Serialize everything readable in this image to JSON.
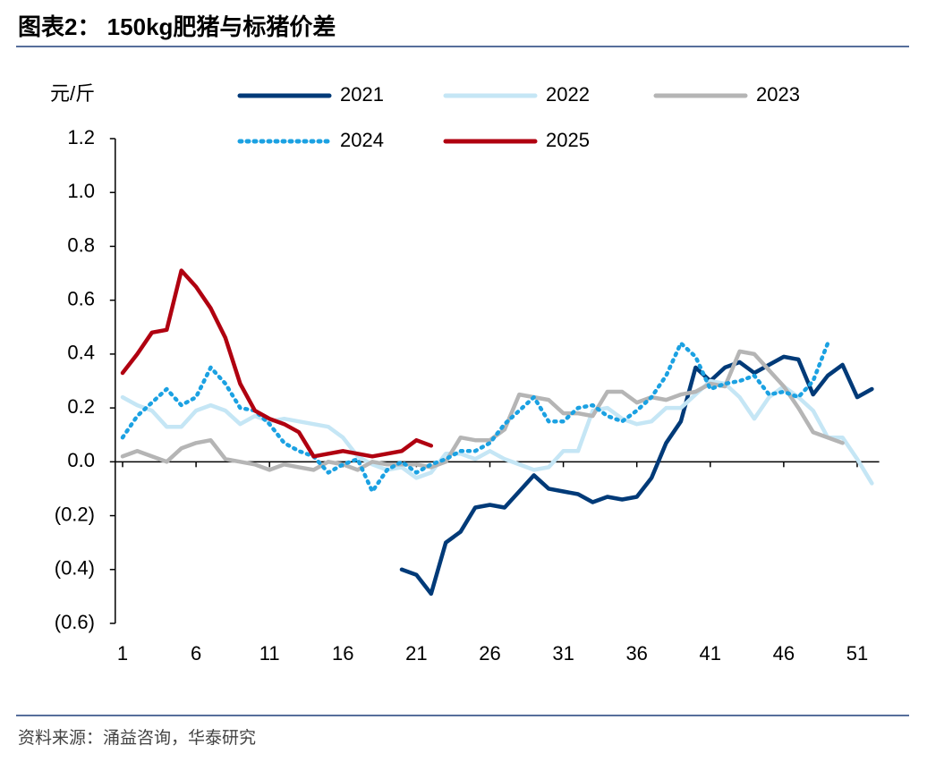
{
  "chart_data": {
    "type": "line",
    "title": "图表2： 150kg肥猪与标猪价差",
    "y_label": "元/斤",
    "source": "资料来源：涌益咨询，华泰研究",
    "x": [
      1,
      2,
      3,
      4,
      5,
      6,
      7,
      8,
      9,
      10,
      11,
      12,
      13,
      14,
      15,
      16,
      17,
      18,
      19,
      20,
      21,
      22,
      23,
      24,
      25,
      26,
      27,
      28,
      29,
      30,
      31,
      32,
      33,
      34,
      35,
      36,
      37,
      38,
      39,
      40,
      41,
      42,
      43,
      44,
      45,
      46,
      47,
      48,
      49,
      50,
      51,
      52
    ],
    "xlim": [
      0.5,
      52.5
    ],
    "xticks": [
      1,
      6,
      11,
      16,
      21,
      26,
      31,
      36,
      41,
      46,
      51
    ],
    "ylim": [
      -0.6,
      1.2
    ],
    "yticks": [
      {
        "value": -0.6,
        "label": "(0.6)"
      },
      {
        "value": -0.4,
        "label": "(0.4)"
      },
      {
        "value": -0.2,
        "label": "(0.2)"
      },
      {
        "value": 0,
        "label": "0.0"
      },
      0.2,
      0.4,
      0.6,
      0.8,
      {
        "value": 1,
        "label": "1.0"
      },
      1.2
    ],
    "series": [
      {
        "name": "2021",
        "color": "#003a78",
        "style": "solid",
        "values": [
          null,
          null,
          null,
          null,
          null,
          null,
          null,
          null,
          null,
          null,
          null,
          null,
          null,
          null,
          null,
          null,
          null,
          null,
          null,
          -0.4,
          -0.42,
          -0.49,
          -0.3,
          -0.26,
          -0.17,
          -0.16,
          -0.17,
          -0.11,
          -0.05,
          -0.1,
          -0.11,
          -0.12,
          -0.15,
          -0.13,
          -0.14,
          -0.13,
          -0.06,
          0.07,
          0.15,
          0.35,
          0.3,
          0.35,
          0.37,
          0.33,
          0.36,
          0.39,
          0.38,
          0.25,
          0.32,
          0.36,
          0.24,
          0.27
        ]
      },
      {
        "name": "2022",
        "color": "#c5e6f5",
        "style": "solid",
        "values": [
          0.24,
          0.21,
          0.19,
          0.13,
          0.13,
          0.19,
          0.21,
          0.19,
          0.14,
          0.17,
          0.15,
          0.16,
          0.15,
          0.14,
          0.13,
          0.09,
          0.02,
          -0.01,
          -0.03,
          -0.02,
          -0.06,
          -0.04,
          0.03,
          0.03,
          0.01,
          0.04,
          0.01,
          -0.01,
          -0.03,
          -0.02,
          0.04,
          0.04,
          0.19,
          0.2,
          0.16,
          0.14,
          0.15,
          0.2,
          0.2,
          0.25,
          0.3,
          0.29,
          0.24,
          0.16,
          0.24,
          0.28,
          0.24,
          0.19,
          0.09,
          0.09,
          0.01,
          -0.08
        ]
      },
      {
        "name": "2023",
        "color": "#b5b5b5",
        "style": "solid",
        "values": [
          0.02,
          0.04,
          0.02,
          0.0,
          0.05,
          0.07,
          0.08,
          0.01,
          0.0,
          -0.01,
          -0.03,
          -0.01,
          -0.02,
          -0.03,
          0.0,
          -0.01,
          -0.03,
          0.0,
          -0.01,
          -0.01,
          -0.01,
          -0.02,
          0.0,
          0.09,
          0.08,
          0.08,
          0.12,
          0.25,
          0.24,
          0.23,
          0.18,
          0.18,
          0.17,
          0.26,
          0.26,
          0.22,
          0.24,
          0.23,
          0.25,
          0.26,
          0.29,
          0.28,
          0.41,
          0.4,
          0.34,
          0.28,
          0.2,
          0.11,
          0.09,
          0.07,
          null,
          null
        ]
      },
      {
        "name": "2024",
        "color": "#1ba1e2",
        "style": "dotted",
        "values": [
          0.09,
          0.17,
          0.22,
          0.27,
          0.21,
          0.24,
          0.35,
          0.29,
          0.2,
          0.19,
          0.14,
          0.07,
          0.04,
          0.02,
          -0.04,
          -0.01,
          0.01,
          -0.11,
          -0.03,
          0.0,
          -0.04,
          -0.01,
          0.01,
          0.04,
          0.04,
          0.07,
          0.14,
          0.19,
          0.24,
          0.15,
          0.15,
          0.2,
          0.21,
          0.17,
          0.15,
          0.19,
          0.24,
          0.32,
          0.44,
          0.39,
          0.27,
          0.29,
          0.3,
          0.32,
          0.25,
          0.26,
          0.24,
          0.3,
          0.44,
          null,
          null,
          null
        ]
      },
      {
        "name": "2025",
        "color": "#b00010",
        "style": "solid",
        "values": [
          0.33,
          0.4,
          0.48,
          0.49,
          0.71,
          0.65,
          0.57,
          0.46,
          0.29,
          0.19,
          0.16,
          0.14,
          0.11,
          0.02,
          0.03,
          0.04,
          0.03,
          0.02,
          0.03,
          0.04,
          0.08,
          0.06,
          null,
          null,
          null,
          null,
          null,
          null,
          null,
          null,
          null,
          null,
          null,
          null,
          null,
          null,
          null,
          null,
          null,
          null,
          null,
          null,
          null,
          null,
          null,
          null,
          null,
          null,
          null,
          null,
          null,
          null
        ]
      }
    ]
  }
}
